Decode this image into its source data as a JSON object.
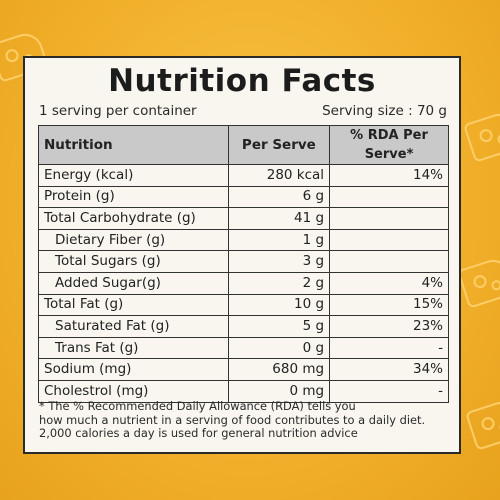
{
  "label": {
    "title": "Nutrition Facts",
    "servings_per_container": "1 serving per container",
    "serving_size": "Serving size : 70 g",
    "headers": {
      "nutrition": "Nutrition",
      "per_serve": "Per Serve",
      "rda": "% RDA Per Serve*"
    },
    "rows": [
      {
        "name": "Energy (kcal)",
        "per_serve": "280 kcal",
        "rda": "14%"
      },
      {
        "name": "Protein (g)",
        "per_serve": "6 g",
        "rda": ""
      },
      {
        "name": "Total Carbohydrate (g)",
        "per_serve": "41 g",
        "rda": ""
      },
      {
        "name": "Dietary Fiber (g)",
        "per_serve": "1 g",
        "rda": ""
      },
      {
        "name": "Total Sugars (g)",
        "per_serve": "3 g",
        "rda": ""
      },
      {
        "name": "Added Sugar(g)",
        "per_serve": "2 g",
        "rda": "4%"
      },
      {
        "name": "Total Fat (g)",
        "per_serve": "10 g",
        "rda": "15%"
      },
      {
        "name": "Saturated Fat (g)",
        "per_serve": "5 g",
        "rda": "23%"
      },
      {
        "name": "Trans Fat (g)",
        "per_serve": "0 g",
        "rda": "-"
      },
      {
        "name": "Sodium (mg)",
        "per_serve": "680 mg",
        "rda": "34%"
      },
      {
        "name": "Cholestrol (mg)",
        "per_serve": "0 mg",
        "rda": "-"
      }
    ],
    "footnote": [
      "* The % Recommended Daily Allowance (RDA) tells you",
      "how much a nutrient in a serving of food contributes to a daily diet.",
      "2,000 calories a day is used for general nutrition advice"
    ]
  },
  "colors": {
    "background": "#f2b12c",
    "label_bg": "#f8f6ef",
    "header_bg": "#c9c9c9"
  }
}
